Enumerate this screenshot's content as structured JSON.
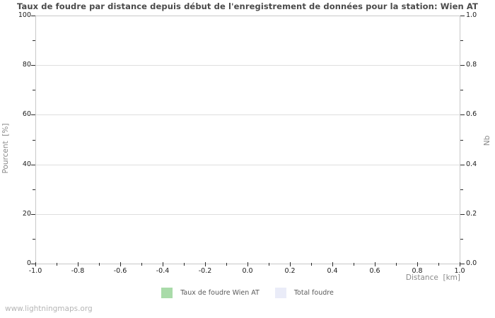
{
  "title": "Taux de foudre par distance depuis début de l'enregistrement de données pour la station: Wien AT",
  "watermark": "www.lightningmaps.org",
  "chart_data": {
    "type": "bar",
    "title": "Taux de foudre par distance depuis début de l'enregistrement de données pour la station: Wien AT",
    "xlabel": "Distance  [km]",
    "ylabel_left": "Pourcent  [%]",
    "ylabel_right": "Nb",
    "xlim": [
      -1.0,
      1.0
    ],
    "ylim_left": [
      0,
      100
    ],
    "ylim_right": [
      0.0,
      1.0
    ],
    "x_tick_labels": [
      "-1.0",
      "-0.8",
      "-0.6",
      "-0.4",
      "-0.2",
      "0.0",
      "0.2",
      "0.4",
      "0.6",
      "0.8",
      "1.0"
    ],
    "y_tick_labels_left": [
      "0",
      "20",
      "40",
      "60",
      "80",
      "100"
    ],
    "y_tick_labels_right": [
      "0.0",
      "0.2",
      "0.4",
      "0.6",
      "0.8",
      "1.0"
    ],
    "grid": "horizontal-only",
    "legend_position": "bottom-center",
    "categories": [],
    "series": [
      {
        "name": "Taux de foudre Wien AT",
        "color": "#a9dba9",
        "values": []
      },
      {
        "name": "Total foudre",
        "color": "#eaecf8",
        "values": []
      }
    ],
    "note": "empty plot - no data points rendered"
  },
  "colors": {
    "grid": "#dedede",
    "plot_border": "#c8c8c8",
    "tick": "#2b2b2b",
    "title_text": "#4a4a4a",
    "axis_label_text": "#8a8a8a",
    "watermark_text": "#b5b5b5"
  }
}
